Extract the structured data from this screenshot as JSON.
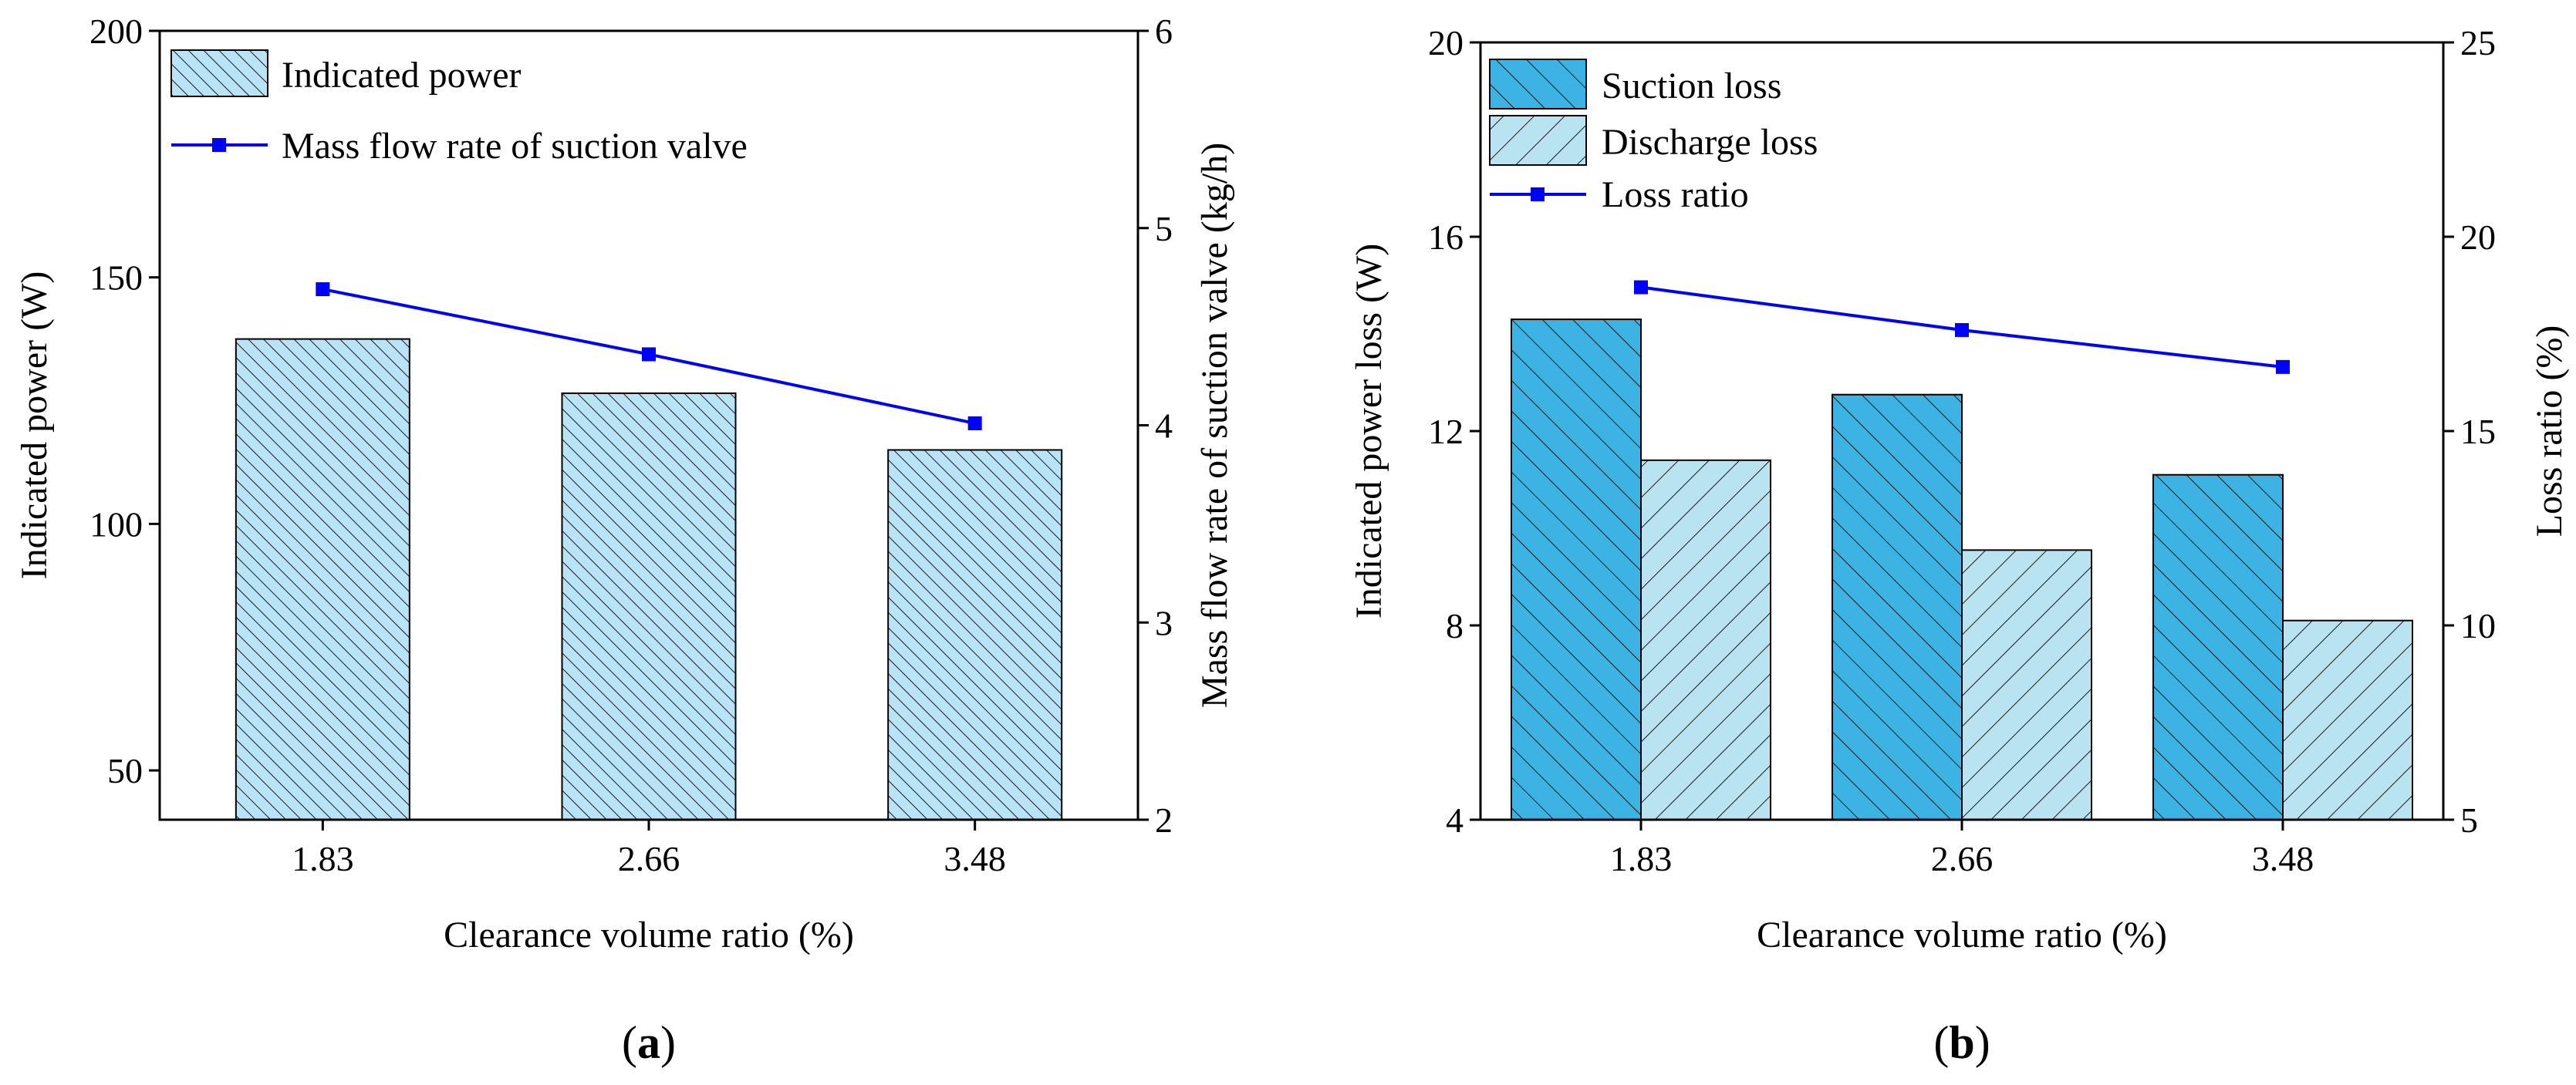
{
  "chart_data": [
    {
      "id": "a",
      "type": "bar",
      "panel_label": "a",
      "xlabel": "Clearance volume ratio (%)",
      "ylabel": "Indicated power (W)",
      "y2label": "Mass flow rate of suction valve (kg/h)",
      "categories": [
        "1.83",
        "2.66",
        "3.48"
      ],
      "ylim": [
        40,
        200
      ],
      "y_ticks": [
        50,
        100,
        150,
        200
      ],
      "y2lim": [
        2,
        6
      ],
      "y2_ticks": [
        2,
        3,
        4,
        5,
        6
      ],
      "series": [
        {
          "name": "Indicated power",
          "kind": "bar",
          "axis": "left",
          "values": [
            137.5,
            126.5,
            115
          ],
          "color": "#b9e3f6",
          "hatch": "//"
        },
        {
          "name": "Mass flow rate of suction valve",
          "kind": "line",
          "axis": "right",
          "values": [
            4.69,
            4.36,
            4.01
          ],
          "color": "#0000ff"
        }
      ]
    },
    {
      "id": "b",
      "type": "bar",
      "panel_label": "b",
      "xlabel": "Clearance volume ratio (%)",
      "ylabel": "Indicated power loss (W)",
      "y2label": "Loss ratio (%)",
      "categories": [
        "1.83",
        "2.66",
        "3.48"
      ],
      "ylim": [
        4,
        20
      ],
      "y_ticks": [
        4,
        8,
        12,
        16,
        20
      ],
      "y2lim": [
        5,
        25
      ],
      "y2_ticks": [
        5,
        10,
        15,
        20,
        25
      ],
      "series": [
        {
          "name": "Suction loss",
          "kind": "bar",
          "axis": "left",
          "values": [
            14.3,
            12.75,
            11.1
          ],
          "color": "#3cb3e3",
          "hatch": "//"
        },
        {
          "name": "Discharge loss",
          "kind": "bar",
          "axis": "left",
          "values": [
            11.4,
            9.55,
            8.1
          ],
          "color": "#b9e3f0",
          "hatch": "\\\\"
        },
        {
          "name": "Loss ratio",
          "kind": "line",
          "axis": "right",
          "values": [
            18.7,
            17.6,
            16.65
          ],
          "color": "#0000ff"
        }
      ]
    }
  ]
}
